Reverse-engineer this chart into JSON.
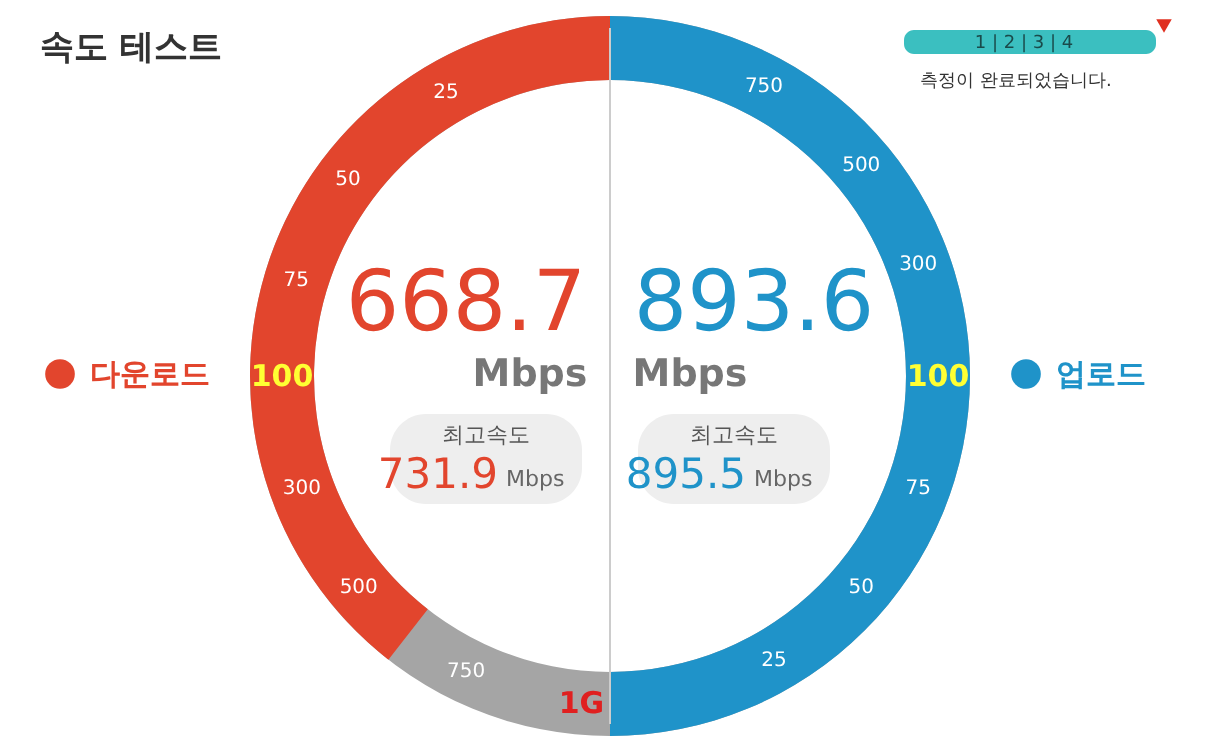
{
  "chart_data": {
    "type": "other",
    "title": "속도 테스트",
    "categories": [
      "다운로드",
      "업로드"
    ],
    "values": [
      668.7,
      893.6
    ],
    "colors": [
      "#e2452d",
      "#1f93c9"
    ],
    "data_labels": true,
    "annotations": [
      "Mbps",
      "최고속도",
      "731.9",
      "895.5",
      "측정이 완료되었습니다.",
      "1 | 2 | 3 | 4",
      "25",
      "50",
      "75",
      "100",
      "300",
      "500",
      "750",
      "1G"
    ]
  }
}
